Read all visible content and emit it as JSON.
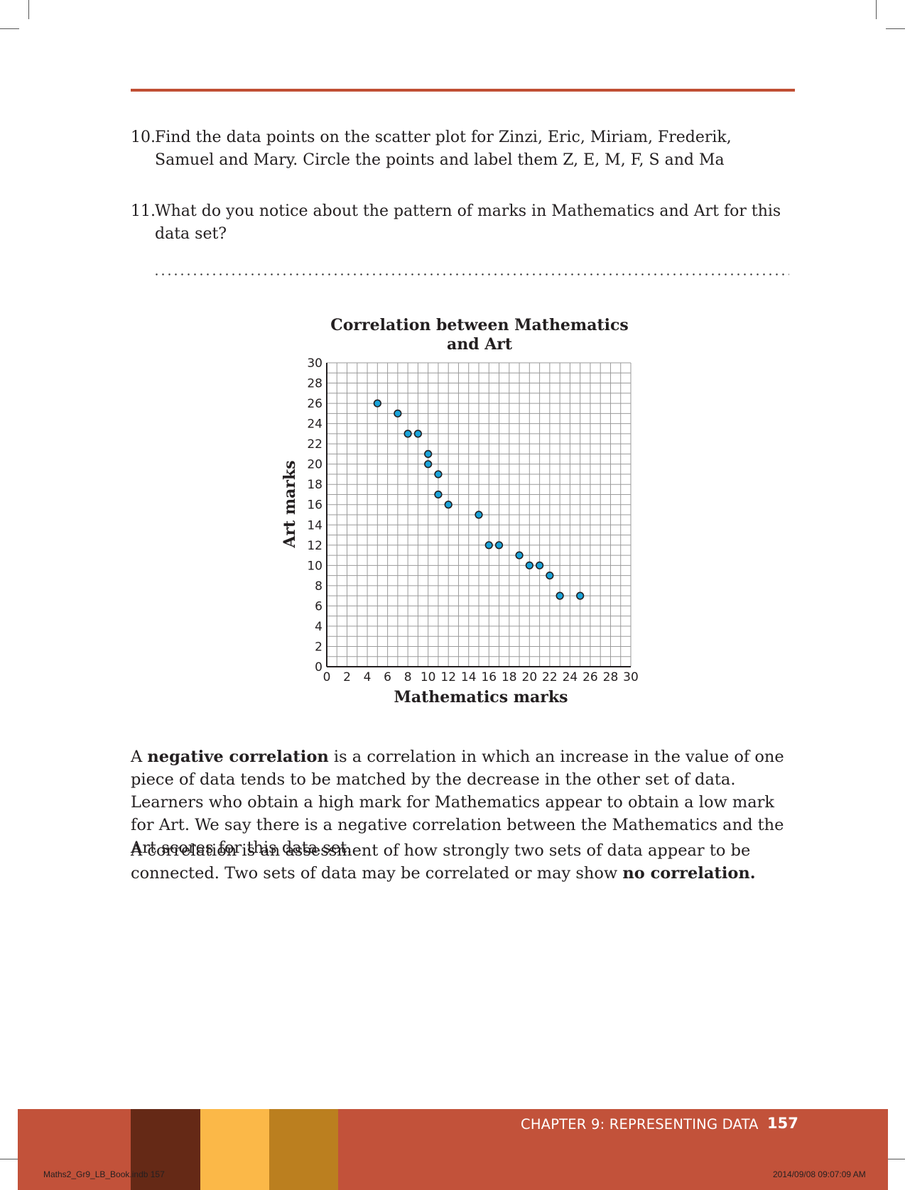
{
  "questions": [
    {
      "number": "10.",
      "text": "Find the data points on the scatter plot for Zinzi, Eric, Miriam, Frederik, Samuel and Mary. Circle the points and label them Z, E, M, F, S and Ma"
    },
    {
      "number": "11.",
      "text": "What do you notice about the pattern of marks in Mathematics and Art for this data set?"
    }
  ],
  "chart_data": {
    "type": "scatter",
    "title": "Correlation between Mathematics and Art",
    "title_line1": "Correlation between Mathematics",
    "title_line2": "and Art",
    "xlabel": "Mathematics marks",
    "ylabel": "Art marks",
    "xlim": [
      0,
      30
    ],
    "ylim": [
      0,
      30
    ],
    "xticks": [
      0,
      2,
      4,
      6,
      8,
      10,
      12,
      14,
      16,
      18,
      20,
      22,
      24,
      26,
      28,
      30
    ],
    "yticks": [
      0,
      2,
      4,
      6,
      8,
      10,
      12,
      14,
      16,
      18,
      20,
      22,
      24,
      26,
      28,
      30
    ],
    "grid": true,
    "point_color": "#1aa3d9",
    "points": [
      {
        "x": 5,
        "y": 26
      },
      {
        "x": 7,
        "y": 25
      },
      {
        "x": 8,
        "y": 23
      },
      {
        "x": 9,
        "y": 23
      },
      {
        "x": 10,
        "y": 21
      },
      {
        "x": 10,
        "y": 20
      },
      {
        "x": 11,
        "y": 19
      },
      {
        "x": 11,
        "y": 17
      },
      {
        "x": 12,
        "y": 16
      },
      {
        "x": 15,
        "y": 15
      },
      {
        "x": 16,
        "y": 12
      },
      {
        "x": 17,
        "y": 12
      },
      {
        "x": 19,
        "y": 11
      },
      {
        "x": 20,
        "y": 10
      },
      {
        "x": 21,
        "y": 10
      },
      {
        "x": 22,
        "y": 9
      },
      {
        "x": 23,
        "y": 7
      },
      {
        "x": 25,
        "y": 7
      }
    ]
  },
  "paragraph1": {
    "prefix": "A ",
    "bold": "negative correlation",
    "rest": " is a correlation in which an increase in the value of one piece of data tends to be matched by the decrease in the other set of data. Learners who obtain a high mark for Mathematics appear to obtain a low mark for Art. We say there is a negative correlation between the Mathematics and the Art scores for this data set."
  },
  "paragraph2": {
    "text": "A correlation is an assessment of how strongly two sets of data appear to be connected. Two sets of data may be correlated or may show ",
    "bold": "no correlation."
  },
  "footer": {
    "chapter": "CHAPTER 9: REPRESENTING DATA",
    "page": "157",
    "slug_left": "Maths2_Gr9_LB_Book.indb   157",
    "slug_right": "2014/09/08   09:07:09 AM",
    "colors": {
      "bar": "#c2523a",
      "brown": "#652916",
      "yellow": "#fbb848",
      "ochre": "#bb7f1f"
    }
  }
}
